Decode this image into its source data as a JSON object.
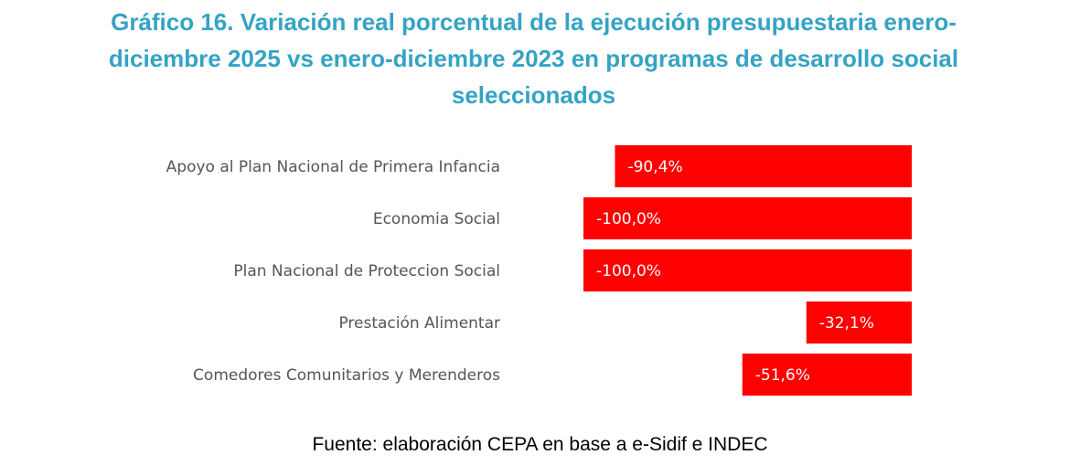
{
  "title": {
    "line1": "Gráfico 16. Variación real porcentual de la ejecución presupuestaria enero-",
    "line2": "diciembre 2025 vs enero-diciembre 2023 en programas de desarrollo social",
    "line3": "seleccionados"
  },
  "source": "Fuente: elaboración CEPA en base a e-Sidif e INDEC",
  "colors": {
    "bar": "#FF0000",
    "title": "#35A3C4"
  },
  "chart_data": {
    "type": "bar",
    "orientation": "horizontal",
    "title": "Gráfico 16. Variación real porcentual de la ejecución presupuestaria enero-diciembre 2025 vs enero-diciembre 2023 en programas de desarrollo social seleccionados",
    "categories": [
      "Apoyo al Plan Nacional de Primera Infancia",
      "Economia Social",
      "Plan Nacional de Proteccion Social",
      "Prestación Alimentar",
      "Comedores Comunitarios y Merenderos"
    ],
    "values": [
      -90.4,
      -100.0,
      -100.0,
      -32.1,
      -51.6
    ],
    "value_labels": [
      "-90,4%",
      "-100,0%",
      "-100,0%",
      "-32,1%",
      "-51,6%"
    ],
    "xlim": [
      -100,
      0
    ],
    "xlabel": "",
    "ylabel": "",
    "grid": false,
    "legend": "none"
  }
}
